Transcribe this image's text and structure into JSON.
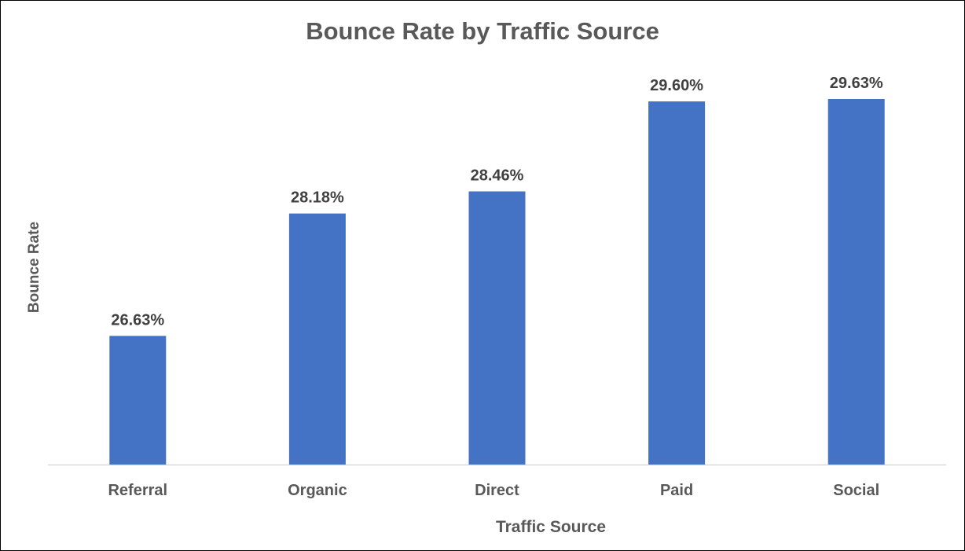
{
  "chart_data": {
    "type": "bar",
    "title": "Bounce Rate by Traffic Source",
    "xlabel": "Traffic Source",
    "ylabel": "Bounce Rate",
    "categories": [
      "Referral",
      "Organic",
      "Direct",
      "Paid",
      "Social"
    ],
    "values": [
      26.63,
      28.18,
      28.46,
      29.6,
      29.63
    ],
    "data_labels": [
      "26.63%",
      "28.18%",
      "28.46%",
      "29.60%",
      "29.63%"
    ],
    "ylim": [
      25.0,
      30.0
    ],
    "grid": false,
    "legend": "none",
    "colors": {
      "bar": "#4472C4",
      "text": "#595959",
      "data_label": "#404040",
      "axis_line": "#D9D9D9"
    }
  }
}
